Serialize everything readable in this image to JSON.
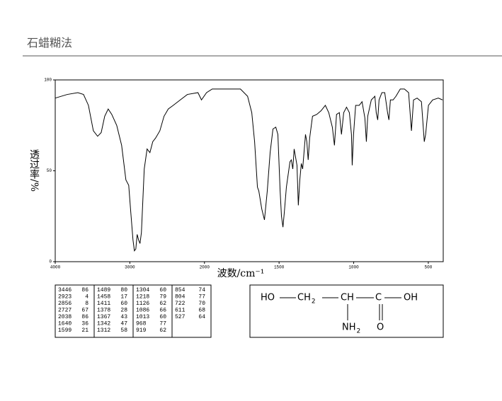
{
  "header": {
    "title": "石蜡糊法"
  },
  "chart_data": {
    "type": "line",
    "x_label": "波数/cm⁻¹",
    "y_label": "透过率/%",
    "xlim": [
      4000,
      400
    ],
    "xticks": [
      4000,
      3000,
      2000,
      1500,
      1000,
      500
    ],
    "ylim": [
      0,
      100
    ],
    "yticks": [
      0,
      50,
      100
    ],
    "color": "#000000",
    "x": [
      4000,
      3839,
      3697,
      3621,
      3555,
      3489,
      3432,
      3384,
      3337,
      3290,
      3242,
      3176,
      3110,
      3053,
      3015,
      2987,
      2958,
      2939,
      2920,
      2902,
      2883,
      2864,
      2845,
      2807,
      2769,
      2731,
      2693,
      2655,
      2598,
      2542,
      2485,
      2419,
      2324,
      2229,
      2087,
      2040,
      1986,
      1948,
      1853,
      1759,
      1711,
      1683,
      1664,
      1645,
      1636,
      1616,
      1598,
      1579,
      1560,
      1541,
      1522,
      1508,
      1493,
      1484,
      1474,
      1465,
      1451,
      1427,
      1418,
      1408,
      1399,
      1380,
      1371,
      1361,
      1351,
      1342,
      1333,
      1323,
      1314,
      1305,
      1295,
      1276,
      1248,
      1219,
      1190,
      1167,
      1143,
      1129,
      1115,
      1096,
      1082,
      1067,
      1048,
      1029,
      1015,
      1010,
      1001,
      987,
      963,
      944,
      925,
      915,
      906,
      882,
      858,
      849,
      839,
      830,
      811,
      792,
      773,
      764,
      754,
      736,
      717,
      688,
      660,
      632,
      613,
      599,
      575,
      546,
      527,
      518,
      499,
      471,
      433,
      405
    ],
    "values": [
      90,
      92,
      93,
      92,
      86,
      72,
      69,
      71,
      80,
      84,
      81,
      75,
      64,
      45,
      42,
      27,
      12,
      6,
      7,
      15,
      12,
      10,
      16,
      51,
      62,
      60,
      66,
      68,
      72,
      80,
      84,
      86,
      89,
      92,
      93,
      89,
      93,
      95,
      95,
      95,
      91,
      82,
      66,
      41,
      39,
      29,
      23,
      39,
      60,
      73,
      74,
      70,
      39,
      25,
      19,
      27,
      41,
      55,
      56,
      51,
      62,
      53,
      31,
      45,
      54,
      51,
      60,
      70,
      66,
      56,
      68,
      80,
      81,
      83,
      86,
      82,
      74,
      64,
      81,
      82,
      70,
      82,
      85,
      82,
      70,
      53,
      70,
      86,
      86,
      88,
      79,
      66,
      80,
      89,
      91,
      82,
      78,
      89,
      93,
      93,
      82,
      78,
      89,
      89,
      91,
      95,
      95,
      93,
      72,
      89,
      90,
      88,
      66,
      70,
      86,
      89,
      90,
      89
    ]
  },
  "peak_table": {
    "columns": [
      {
        "wavenumber": [
          3446,
          2923,
          2856,
          2727,
          2038,
          1640,
          1599
        ],
        "transmittance": [
          86,
          4,
          8,
          67,
          86,
          36,
          21
        ]
      },
      {
        "wavenumber": [
          1489,
          1458,
          1411,
          1378,
          1367,
          1342,
          1312
        ],
        "transmittance": [
          80,
          17,
          60,
          28,
          43,
          47,
          58
        ]
      },
      {
        "wavenumber": [
          1304,
          1218,
          1126,
          1086,
          1013,
          968,
          919
        ],
        "transmittance": [
          60,
          79,
          62,
          66,
          60,
          77,
          62
        ]
      },
      {
        "wavenumber": [
          854,
          804,
          722,
          611,
          527
        ],
        "transmittance": [
          74,
          77,
          70,
          68,
          64
        ]
      }
    ]
  },
  "structure": {
    "nodes": [
      {
        "text": "HO"
      },
      {
        "text": "CH",
        "sub": "2"
      },
      {
        "text": "CH"
      },
      {
        "text": "C"
      },
      {
        "text": "OH"
      },
      {
        "text": "NH",
        "sub": "2"
      },
      {
        "text": "O"
      }
    ]
  }
}
